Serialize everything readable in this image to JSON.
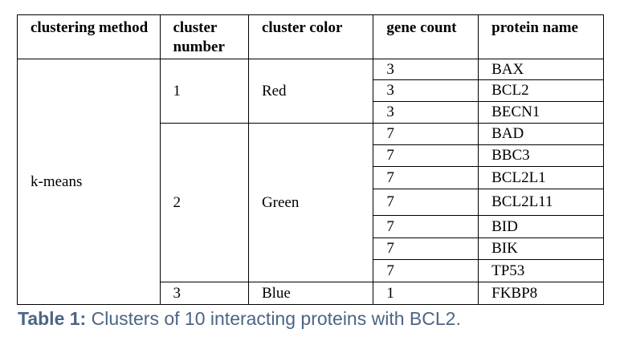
{
  "table": {
    "header": [
      "clustering method",
      "cluster number",
      "cluster color",
      "gene count",
      "protein name"
    ],
    "method": "k-means",
    "clusters": [
      {
        "number": 1,
        "color": "Red",
        "genes": [
          {
            "count": 3,
            "protein": "BAX"
          },
          {
            "count": 3,
            "protein": "BCL2"
          },
          {
            "count": 3,
            "protein": "BECN1"
          }
        ]
      },
      {
        "number": 2,
        "color": "Green",
        "genes": [
          {
            "count": 7,
            "protein": "BAD"
          },
          {
            "count": 7,
            "protein": "BBC3"
          },
          {
            "count": 7,
            "protein": "BCL2L1"
          },
          {
            "count": 7,
            "protein": "BCL2L11"
          },
          {
            "count": 7,
            "protein": "BID"
          },
          {
            "count": 7,
            "protein": "BIK"
          },
          {
            "count": 7,
            "protein": "TP53"
          }
        ]
      },
      {
        "number": 3,
        "color": "Blue",
        "genes": [
          {
            "count": 1,
            "protein": "FKBP8"
          }
        ]
      }
    ]
  },
  "caption": {
    "label": "Table 1:",
    "text": "Clusters of 10 interacting proteins with BCL2."
  }
}
